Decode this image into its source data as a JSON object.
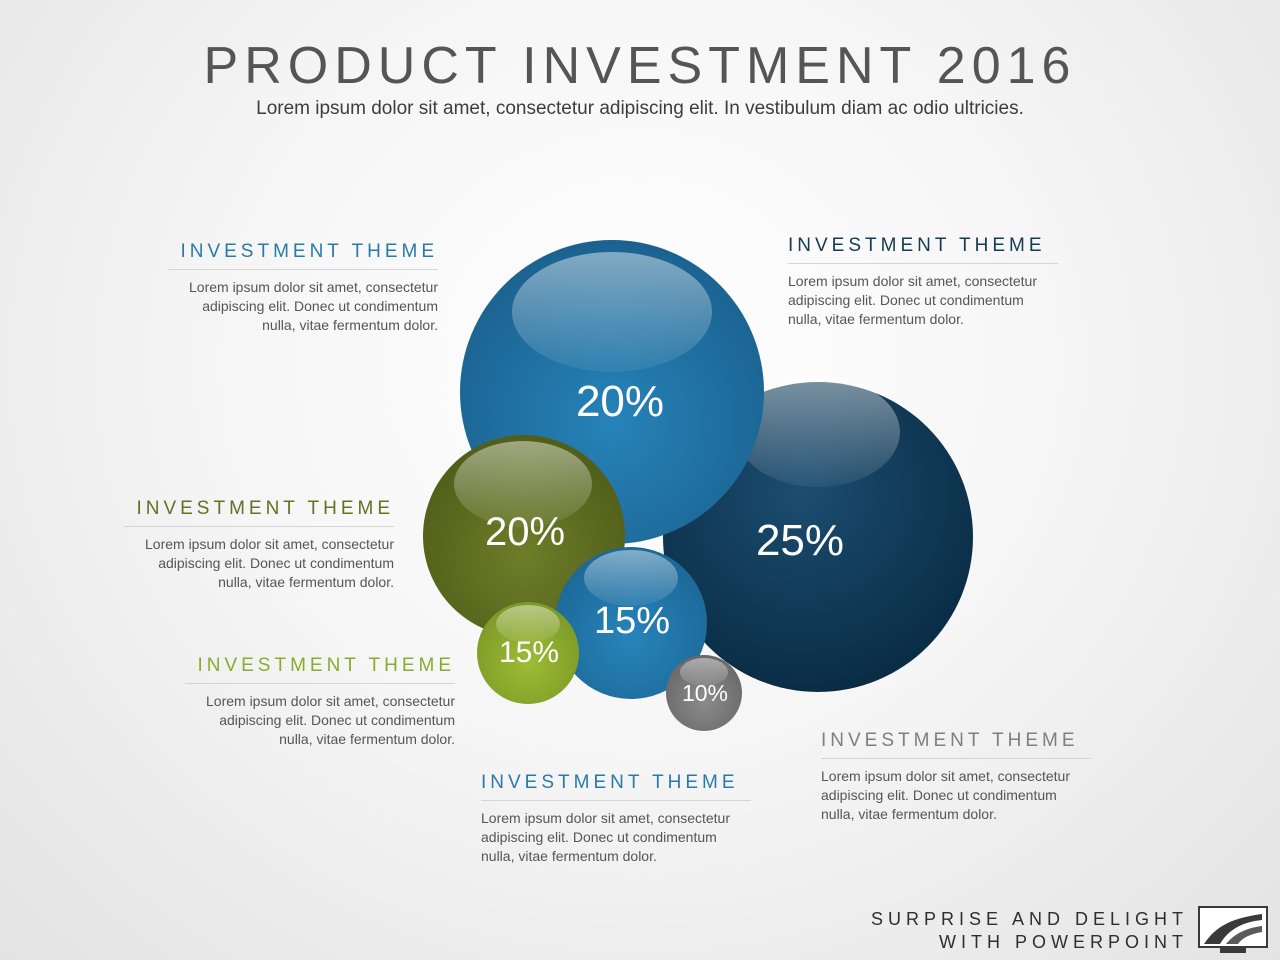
{
  "header": {
    "title": "PRODUCT INVESTMENT 2016",
    "subtitle": "Lorem ipsum dolor sit amet, consectetur adipiscing elit. In vestibulum diam ac odio ultricies."
  },
  "themes": [
    {
      "id": "top-left",
      "heading": "INVESTMENT THEME",
      "body": "Lorem ipsum dolor sit amet, consectetur adipiscing elit. Donec ut condimentum nulla, vitae fermentum dolor.",
      "color": "#2a7aa8"
    },
    {
      "id": "top-right",
      "heading": "INVESTMENT THEME",
      "body": "Lorem ipsum dolor sit amet, consectetur adipiscing elit. Donec ut condimentum nulla, vitae fermentum dolor.",
      "color": "#163a52"
    },
    {
      "id": "mid-left",
      "heading": "INVESTMENT THEME",
      "body": "Lorem ipsum dolor sit amet, consectetur adipiscing elit. Donec ut condimentum nulla, vitae fermentum dolor.",
      "color": "#637321"
    },
    {
      "id": "lower-left",
      "heading": "INVESTMENT THEME",
      "body": "Lorem ipsum dolor sit amet, consectetur adipiscing elit. Donec ut condimentum nulla, vitae fermentum dolor.",
      "color": "#8cab2e"
    },
    {
      "id": "bottom-center",
      "heading": "INVESTMENT THEME",
      "body": "Lorem ipsum dolor sit amet, consectetur adipiscing elit. Donec ut condimentum nulla, vitae fermentum dolor.",
      "color": "#2a7aa8"
    },
    {
      "id": "bottom-right",
      "heading": "INVESTMENT THEME",
      "body": "Lorem ipsum dolor sit amet, consectetur adipiscing elit. Donec ut condimentum nulla, vitae fermentum dolor.",
      "color": "#7f7f7f"
    }
  ],
  "bubbles": [
    {
      "name": "navy",
      "label": "25%",
      "value": 25,
      "color": "#0d3350"
    },
    {
      "name": "blue-large",
      "label": "20%",
      "value": 20,
      "color": "#1e6f9e"
    },
    {
      "name": "olive",
      "label": "20%",
      "value": 20,
      "color": "#5f6d20"
    },
    {
      "name": "blue-small",
      "label": "15%",
      "value": 15,
      "color": "#2178ab"
    },
    {
      "name": "lime",
      "label": "15%",
      "value": 15,
      "color": "#8aa92c"
    },
    {
      "name": "gray",
      "label": "10%",
      "value": 10,
      "color": "#7a7a7a"
    }
  ],
  "footer": {
    "line1": "SURPRISE AND DELIGHT",
    "line2": "WITH POWERPOINT",
    "logo_icon": "road-logo-icon"
  }
}
